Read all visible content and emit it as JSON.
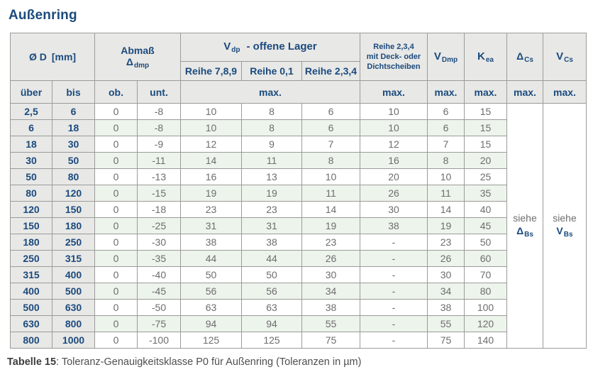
{
  "page": {
    "title": "Außenring",
    "caption_label": "Tabelle 15",
    "caption_text": ": Toleranz-Genauigkeitsklasse P0 für Außenring (Toleranzen in µm)"
  },
  "header": {
    "d_label": "Ø D",
    "d_unit": "[mm]",
    "abmass_title": "Abmaß",
    "abmass_symbol": "Δ",
    "abmass_sub": "dmp",
    "vdp_symbol": "V",
    "vdp_sub": "dp",
    "vdp_suffix": "-  offene Lager",
    "reihe_789": "Reihe 7,8,9",
    "reihe_01": "Reihe 0,1",
    "reihe_234": "Reihe 2,3,4",
    "deck_line1": "Reihe 2,3,4",
    "deck_line2": "mit Deck- oder",
    "deck_line3": "Dichtscheiben",
    "vdmp_symbol": "V",
    "vdmp_sub": "Dmp",
    "kea_symbol": "K",
    "kea_sub": "ea",
    "dcs_symbol": "Δ",
    "dcs_sub": "Cs",
    "vcs_symbol": "V",
    "vcs_sub": "Cs",
    "ueber": "über",
    "bis": "bis",
    "ob": "ob.",
    "unt": "unt.",
    "max": "max."
  },
  "see": {
    "dcs_word": "siehe",
    "dcs_symbol": "Δ",
    "dcs_sub": "Bs",
    "vcs_word": "siehe",
    "vcs_symbol": "V",
    "vcs_sub": "Bs"
  },
  "rows": [
    [
      "2,5",
      "6",
      "0",
      "-8",
      "10",
      "8",
      "6",
      "10",
      "6",
      "15"
    ],
    [
      "6",
      "18",
      "0",
      "-8",
      "10",
      "8",
      "6",
      "10",
      "6",
      "15"
    ],
    [
      "18",
      "30",
      "0",
      "-9",
      "12",
      "9",
      "7",
      "12",
      "7",
      "15"
    ],
    [
      "30",
      "50",
      "0",
      "-11",
      "14",
      "11",
      "8",
      "16",
      "8",
      "20"
    ],
    [
      "50",
      "80",
      "0",
      "-13",
      "16",
      "13",
      "10",
      "20",
      "10",
      "25"
    ],
    [
      "80",
      "120",
      "0",
      "-15",
      "19",
      "19",
      "11",
      "26",
      "11",
      "35"
    ],
    [
      "120",
      "150",
      "0",
      "-18",
      "23",
      "23",
      "14",
      "30",
      "14",
      "40"
    ],
    [
      "150",
      "180",
      "0",
      "-25",
      "31",
      "31",
      "19",
      "38",
      "19",
      "45"
    ],
    [
      "180",
      "250",
      "0",
      "-30",
      "38",
      "38",
      "23",
      "-",
      "23",
      "50"
    ],
    [
      "250",
      "315",
      "0",
      "-35",
      "44",
      "44",
      "26",
      "-",
      "26",
      "60"
    ],
    [
      "315",
      "400",
      "0",
      "-40",
      "50",
      "50",
      "30",
      "-",
      "30",
      "70"
    ],
    [
      "400",
      "500",
      "0",
      "-45",
      "56",
      "56",
      "34",
      "-",
      "34",
      "80"
    ],
    [
      "500",
      "630",
      "0",
      "-50",
      "63",
      "63",
      "38",
      "-",
      "38",
      "100"
    ],
    [
      "630",
      "800",
      "0",
      "-75",
      "94",
      "94",
      "55",
      "-",
      "55",
      "120"
    ],
    [
      "800",
      "1000",
      "0",
      "-100",
      "125",
      "125",
      "75",
      "-",
      "75",
      "140"
    ]
  ]
}
